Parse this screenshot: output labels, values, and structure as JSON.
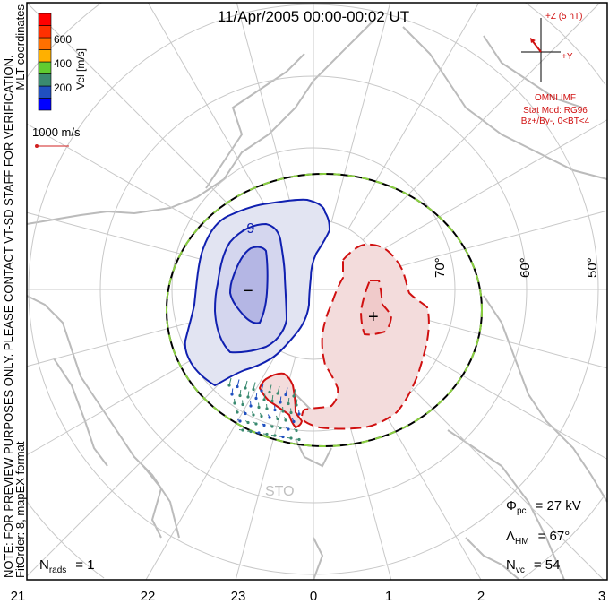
{
  "title": "11/Apr/2005 00:00-00:02 UT",
  "side_note": "NOTE: FOR PREVIEW PURPOSES ONLY. PLEASE CONTACT VT-SD STAFF FOR VERIFICATION.",
  "coords_label": "MLT coordinates",
  "fit_label": "FitOrder: 8, mapEX format",
  "colorbar": {
    "label": "Vel [m/s]",
    "ticks": [
      "200",
      "400",
      "600"
    ],
    "colors": [
      "#0000ff",
      "#2050c0",
      "#3a8a70",
      "#60cc30",
      "#ffb000",
      "#ff7000",
      "#ff3000",
      "#ff0000"
    ]
  },
  "scale_vector": "1000 m/s",
  "imf": {
    "z_label": "+Z (5 nT)",
    "y_label": "+Y",
    "source": "OMNI IMF",
    "model": "Stat Mod: RG96",
    "condition": "Bz+/By-, 0<BT<4"
  },
  "lat_labels": [
    "70°",
    "60°",
    "50°"
  ],
  "mlt_labels": [
    "21",
    "22",
    "23",
    "0",
    "1",
    "2",
    "3"
  ],
  "station": "STO",
  "stats": {
    "phi_sym": "Φ",
    "phi_sub": "pc",
    "phi_val": "= 27  kV",
    "lam_sym": "Λ",
    "lam_sub": "HM",
    "lam_val": "= 67°",
    "nvc_sym": "N",
    "nvc_sub": "vc",
    "nvc_val": "= 54",
    "nrads_sym": "N",
    "nrads_sub": "rads",
    "nrads_val": "= 1"
  },
  "markers": {
    "min": "−",
    "max": "+"
  },
  "colors": {
    "neg": "#1020b0",
    "pos": "#d01010",
    "grid": "#c8c8c8",
    "land": "#b8b8b8"
  }
}
